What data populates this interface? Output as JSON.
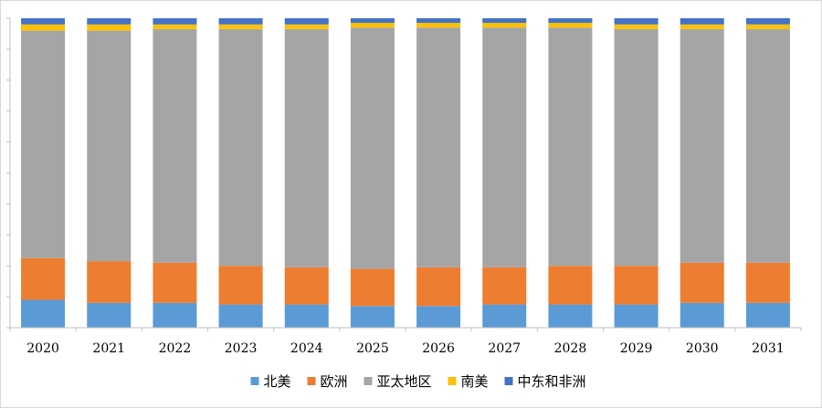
{
  "chart_data": {
    "type": "bar",
    "stacked": true,
    "normalized": true,
    "categories": [
      "2020",
      "2021",
      "2022",
      "2023",
      "2024",
      "2025",
      "2026",
      "2027",
      "2028",
      "2029",
      "2030",
      "2031"
    ],
    "series": [
      {
        "name": "北美",
        "color": "#5b9bd5",
        "values": [
          9,
          8,
          8,
          7.5,
          7.5,
          7,
          7,
          7.5,
          7.5,
          7.5,
          8,
          8
        ]
      },
      {
        "name": "欧洲",
        "color": "#ed7d31",
        "values": [
          13.5,
          13.5,
          13,
          12.5,
          12,
          12,
          12.5,
          12,
          12.5,
          12.5,
          13,
          13
        ]
      },
      {
        "name": "亚太地区",
        "color": "#a5a5a5",
        "values": [
          73.5,
          74.5,
          75.5,
          76.5,
          77,
          78,
          77.5,
          77.5,
          77,
          76.5,
          75.5,
          75.5
        ]
      },
      {
        "name": "南美",
        "color": "#ffc000",
        "values": [
          2,
          2,
          1.5,
          1.5,
          1.5,
          1.5,
          1.5,
          1.5,
          1.5,
          1.5,
          1.5,
          1.5
        ]
      },
      {
        "name": "中东和非洲",
        "color": "#4472c4",
        "values": [
          2,
          2,
          2,
          2,
          2,
          1.5,
          1.5,
          1.5,
          1.5,
          2,
          2,
          2
        ]
      }
    ],
    "ylim": [
      0,
      100
    ],
    "y_ticks": 10,
    "grid": false,
    "legend": "bottom"
  }
}
